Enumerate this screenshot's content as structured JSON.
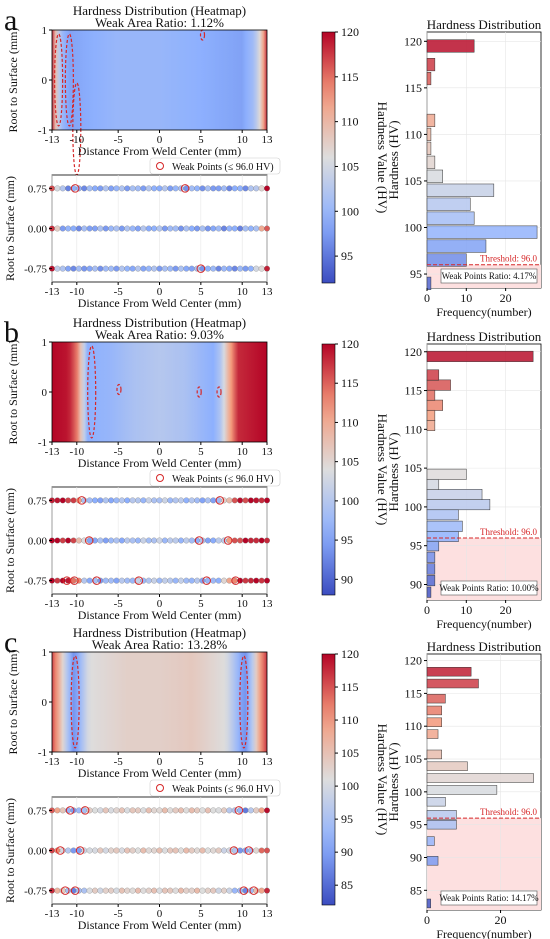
{
  "common": {
    "heatmap_title": "Hardness Distribution (Heatmap)",
    "heatmap_xlabel": "Distance From Weld Center (mm)",
    "heatmap_ylabel": "Root to Surface (mm)",
    "heatmap_yticks": [
      "-1",
      "0",
      "1"
    ],
    "points_xlabel": "Distance From Weld Center (mm)",
    "points_ylabel": "Root to Surface (mm)",
    "points_yticks": [
      "-0.75",
      "0.00",
      "0.75"
    ],
    "xticks": [
      "-13",
      "-10",
      "-5",
      "0",
      "5",
      "10",
      "13"
    ],
    "xtick_values": [
      -13,
      -10,
      -5,
      0,
      5,
      10,
      13
    ],
    "legend_label": "Weak Points (≤ 96.0 HV)",
    "colorbar_label": "Hardness Value (HV)",
    "hist_title": "Hardness Distribution",
    "hist_xlabel": "Frequency(number)",
    "hist_ylabel": "Hardness (HV)",
    "threshold_label": "Threshold: 96.0",
    "colors": {
      "low": "#3b4cc0",
      "mid": "#dddddd",
      "high": "#b40426",
      "threshold": "#d62728",
      "weak_fill": "#fde0e0"
    }
  },
  "chart_data": [
    {
      "panel": "a",
      "type": "heatmap",
      "weak_area_ratio": "Weak Area Ratio: 1.12%",
      "colorbar_ticks": [
        "95",
        "100",
        "105",
        "110",
        "115",
        "120"
      ],
      "colorbar_tick_values": [
        95,
        100,
        105,
        110,
        115,
        120
      ],
      "colorbar_range": [
        92,
        120
      ],
      "hist_yticks": [
        "95",
        "100",
        "105",
        "110",
        "115",
        "120"
      ],
      "hist_ytick_values": [
        95,
        100,
        105,
        110,
        115,
        120
      ],
      "hist_ylim": [
        93.5,
        121
      ],
      "hist_xticks": [
        "0",
        "10",
        "20"
      ],
      "hist_xtick_values": [
        0,
        10,
        20
      ],
      "hist_xlim": [
        0,
        29
      ],
      "threshold": 96.0,
      "weak_points_ratio": "Weak Points Ratio: 4.17%",
      "hist_bins": [
        {
          "hv": 94.0,
          "count": 1
        },
        {
          "hv": 96.5,
          "count": 10
        },
        {
          "hv": 98.0,
          "count": 15
        },
        {
          "hv": 99.5,
          "count": 28
        },
        {
          "hv": 101.0,
          "count": 12
        },
        {
          "hv": 102.5,
          "count": 11
        },
        {
          "hv": 104.0,
          "count": 17
        },
        {
          "hv": 105.5,
          "count": 4
        },
        {
          "hv": 107.0,
          "count": 2
        },
        {
          "hv": 108.5,
          "count": 1
        },
        {
          "hv": 110.0,
          "count": 1
        },
        {
          "hv": 111.5,
          "count": 2
        },
        {
          "hv": 116.0,
          "count": 1
        },
        {
          "hv": 117.5,
          "count": 2
        },
        {
          "hv": 119.5,
          "count": 12
        }
      ],
      "heat_profile": [
        {
          "x": -13,
          "hv": 118
        },
        {
          "x": -12.5,
          "hv": 108
        },
        {
          "x": -12,
          "hv": 101
        },
        {
          "x": -11,
          "hv": 98
        },
        {
          "x": -8,
          "hv": 99
        },
        {
          "x": -5,
          "hv": 100
        },
        {
          "x": 0,
          "hv": 100
        },
        {
          "x": 5,
          "hv": 99
        },
        {
          "x": 10,
          "hv": 98
        },
        {
          "x": 11.5,
          "hv": 101
        },
        {
          "x": 12.3,
          "hv": 108
        },
        {
          "x": 13,
          "hv": 118
        }
      ],
      "weak_region_centers": [
        {
          "x": -12.2,
          "y": 0.0
        },
        {
          "x": -10.9,
          "y": 0.0
        },
        {
          "x": 5.2,
          "y": 0.9
        },
        {
          "x": -10.0,
          "y": -0.98
        }
      ],
      "weak_points_x": [
        -10.2,
        3.1,
        5.0
      ],
      "weak_points_y": [
        0.75,
        0.75,
        -0.75
      ]
    },
    {
      "panel": "b",
      "type": "heatmap",
      "weak_area_ratio": "Weak Area Ratio: 9.03%",
      "colorbar_ticks": [
        "90",
        "95",
        "100",
        "105",
        "110",
        "115",
        "120"
      ],
      "colorbar_tick_values": [
        90,
        95,
        100,
        105,
        110,
        115,
        120
      ],
      "colorbar_range": [
        88,
        120
      ],
      "hist_yticks": [
        "90",
        "95",
        "100",
        "105",
        "110",
        "115",
        "120"
      ],
      "hist_ytick_values": [
        90,
        95,
        100,
        105,
        110,
        115,
        120
      ],
      "hist_ylim": [
        88,
        121
      ],
      "hist_xticks": [
        "0",
        "10",
        "20"
      ],
      "hist_xtick_values": [
        0,
        10,
        20
      ],
      "hist_xlim": [
        0,
        29
      ],
      "threshold": 96.0,
      "weak_points_ratio": "Weak Points Ratio: 10.00%",
      "hist_bins": [
        {
          "hv": 89.0,
          "count": 1
        },
        {
          "hv": 90.5,
          "count": 2
        },
        {
          "hv": 92.0,
          "count": 2
        },
        {
          "hv": 93.5,
          "count": 2
        },
        {
          "hv": 95.0,
          "count": 3
        },
        {
          "hv": 96.2,
          "count": 8
        },
        {
          "hv": 97.5,
          "count": 9
        },
        {
          "hv": 99.0,
          "count": 8
        },
        {
          "hv": 100.3,
          "count": 16
        },
        {
          "hv": 101.6,
          "count": 14
        },
        {
          "hv": 102.9,
          "count": 3
        },
        {
          "hv": 104.2,
          "count": 10
        },
        {
          "hv": 110.5,
          "count": 2
        },
        {
          "hv": 111.8,
          "count": 2
        },
        {
          "hv": 113.1,
          "count": 4
        },
        {
          "hv": 114.4,
          "count": 2
        },
        {
          "hv": 115.7,
          "count": 6
        },
        {
          "hv": 117.0,
          "count": 3
        },
        {
          "hv": 119.4,
          "count": 27
        }
      ],
      "heat_profile": [
        {
          "x": -13,
          "hv": 120
        },
        {
          "x": -11,
          "hv": 119
        },
        {
          "x": -10,
          "hv": 114
        },
        {
          "x": -9.3,
          "hv": 104
        },
        {
          "x": -8.7,
          "hv": 96
        },
        {
          "x": -6,
          "hv": 97
        },
        {
          "x": -3,
          "hv": 99
        },
        {
          "x": 0,
          "hv": 100
        },
        {
          "x": 3,
          "hv": 99
        },
        {
          "x": 6.5,
          "hv": 96
        },
        {
          "x": 7.5,
          "hv": 100
        },
        {
          "x": 8.4,
          "hv": 110
        },
        {
          "x": 9.5,
          "hv": 118
        },
        {
          "x": 13,
          "hv": 120
        }
      ],
      "weak_region_centers": [
        {
          "x": -8.2,
          "y": 0.0
        },
        {
          "x": 7.2,
          "y": 0.0
        },
        {
          "x": -4.9,
          "y": 0.05
        },
        {
          "x": 4.8,
          "y": 0.0
        }
      ],
      "weak_points_x": [
        -11.2,
        -10.3,
        -9.4,
        -8.5,
        -7.6,
        -2.5,
        4.8,
        5.7,
        7.3,
        8.3,
        9.2
      ],
      "weak_points_y": [
        -0.75,
        -0.75,
        0.75,
        0.0,
        -0.75,
        -0.75,
        0.0,
        -0.75,
        0.75,
        0.0,
        -0.75
      ]
    },
    {
      "panel": "c",
      "type": "heatmap",
      "weak_area_ratio": "Weak Area Ratio: 13.28%",
      "colorbar_ticks": [
        "85",
        "90",
        "95",
        "100",
        "105",
        "110",
        "115",
        "120"
      ],
      "colorbar_tick_values": [
        85,
        90,
        95,
        100,
        105,
        110,
        115,
        120
      ],
      "colorbar_range": [
        82,
        120
      ],
      "hist_yticks": [
        "85",
        "90",
        "95",
        "100",
        "105",
        "110",
        "115",
        "120"
      ],
      "hist_ytick_values": [
        85,
        90,
        95,
        100,
        105,
        110,
        115,
        120
      ],
      "hist_ylim": [
        82,
        121
      ],
      "hist_xticks": [
        "0",
        "20"
      ],
      "hist_xtick_values": [
        0,
        20
      ],
      "hist_xlim": [
        0,
        31
      ],
      "threshold": 96.0,
      "weak_points_ratio": "Weak Points Ratio: 14.17%",
      "hist_bins": [
        {
          "hv": 83.0,
          "count": 1
        },
        {
          "hv": 89.5,
          "count": 3
        },
        {
          "hv": 92.5,
          "count": 2
        },
        {
          "hv": 95.0,
          "count": 8
        },
        {
          "hv": 96.5,
          "count": 8
        },
        {
          "hv": 98.5,
          "count": 5
        },
        {
          "hv": 100.3,
          "count": 19
        },
        {
          "hv": 102.1,
          "count": 29
        },
        {
          "hv": 103.9,
          "count": 11
        },
        {
          "hv": 105.7,
          "count": 4
        },
        {
          "hv": 108.8,
          "count": 3
        },
        {
          "hv": 110.6,
          "count": 4
        },
        {
          "hv": 112.4,
          "count": 4
        },
        {
          "hv": 114.2,
          "count": 5
        },
        {
          "hv": 116.5,
          "count": 14
        },
        {
          "hv": 118.3,
          "count": 12
        }
      ],
      "heat_profile": [
        {
          "x": -13,
          "hv": 116
        },
        {
          "x": -12,
          "hv": 106
        },
        {
          "x": -11.2,
          "hv": 96
        },
        {
          "x": -10.3,
          "hv": 88
        },
        {
          "x": -9.5,
          "hv": 94
        },
        {
          "x": -8.5,
          "hv": 101
        },
        {
          "x": -4,
          "hv": 103
        },
        {
          "x": 0,
          "hv": 103
        },
        {
          "x": 4,
          "hv": 104
        },
        {
          "x": 8,
          "hv": 101
        },
        {
          "x": 9.3,
          "hv": 94
        },
        {
          "x": 10.3,
          "hv": 88
        },
        {
          "x": 11.2,
          "hv": 96
        },
        {
          "x": 12,
          "hv": 108
        },
        {
          "x": 13,
          "hv": 117
        }
      ],
      "weak_region_centers": [
        {
          "x": -10.2,
          "y": 0.0
        },
        {
          "x": 10.2,
          "y": 0.0
        }
      ],
      "weak_points_x": [
        -12.0,
        -11.4,
        -10.8,
        -10.2,
        -9.6,
        -9.0,
        9.0,
        9.6,
        10.2,
        10.8,
        11.4
      ],
      "weak_points_y": [
        0.0,
        -0.75,
        0.75,
        -0.75,
        0.0,
        0.75,
        0.0,
        0.75,
        -0.75,
        0.0,
        -0.75
      ]
    }
  ]
}
